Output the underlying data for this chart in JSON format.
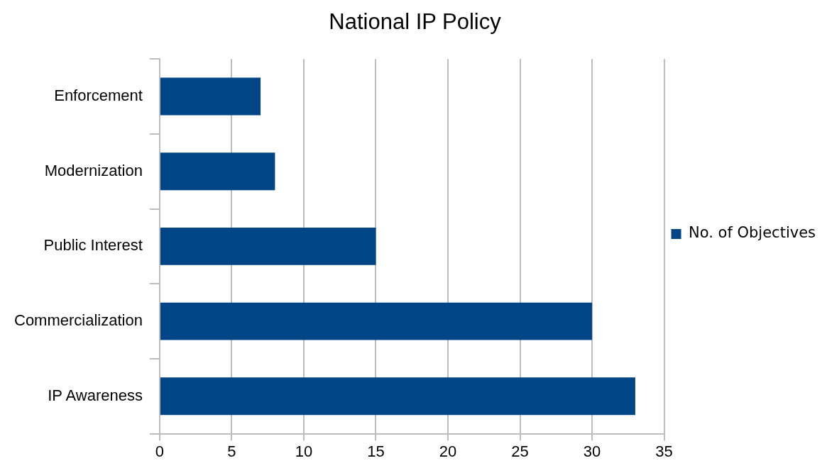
{
  "chart_data": {
    "type": "bar",
    "orientation": "horizontal",
    "title": "National IP Policy",
    "categories": [
      "Enforcement",
      "Modernization",
      "Public Interest",
      "Commercialization",
      "IP Awareness"
    ],
    "series": [
      {
        "name": "No. of Objectives",
        "color": "#004586",
        "values": [
          7,
          8,
          15,
          30,
          33
        ]
      }
    ],
    "xlim": [
      0,
      35
    ],
    "xticks": [
      0,
      5,
      10,
      15,
      20,
      25,
      30,
      35
    ],
    "grid": "x",
    "legend": "right"
  }
}
